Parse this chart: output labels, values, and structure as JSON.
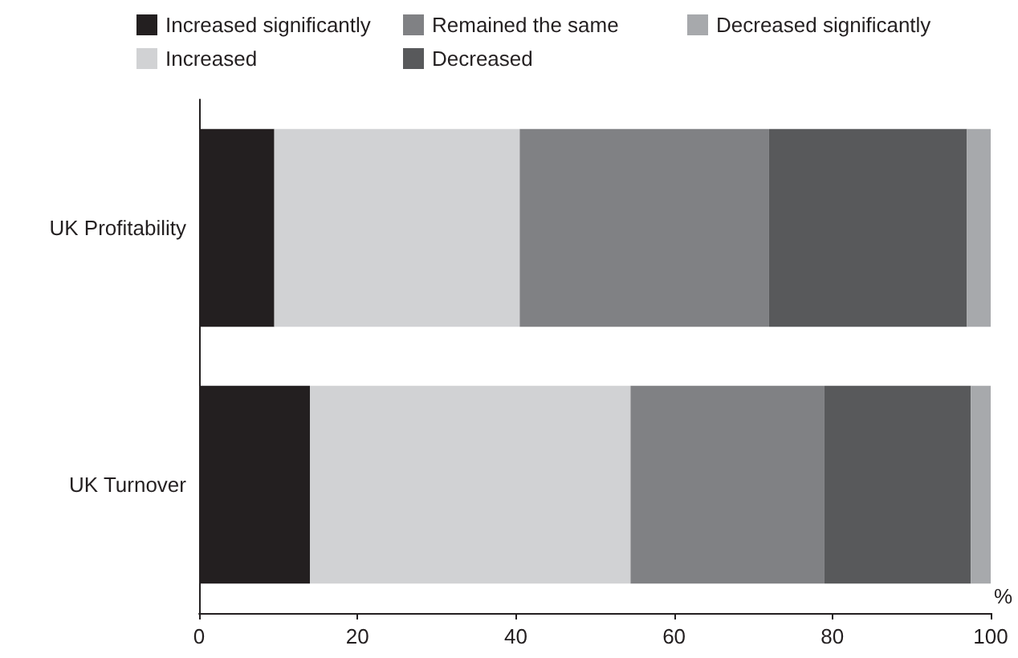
{
  "chart_data": {
    "type": "bar",
    "orientation": "horizontal",
    "stacked": true,
    "categories": [
      "UK Profitability",
      "UK Turnover"
    ],
    "series": [
      {
        "name": "Increased significantly",
        "color": "#231f20",
        "values": [
          9.5,
          14
        ]
      },
      {
        "name": "Increased",
        "color": "#d1d2d4",
        "values": [
          31,
          40.5
        ]
      },
      {
        "name": "Remained the same",
        "color": "#808184",
        "values": [
          31.5,
          24.5
        ]
      },
      {
        "name": "Decreased",
        "color": "#58595b",
        "values": [
          25,
          18.5
        ]
      },
      {
        "name": "Decreased significantly",
        "color": "#a7a9ac",
        "values": [
          3,
          2.5
        ]
      }
    ],
    "xlabel": "%",
    "xlim": [
      0,
      100
    ],
    "xticks": [
      0,
      20,
      40,
      60,
      80,
      100
    ],
    "grid": false,
    "legend": "top"
  }
}
